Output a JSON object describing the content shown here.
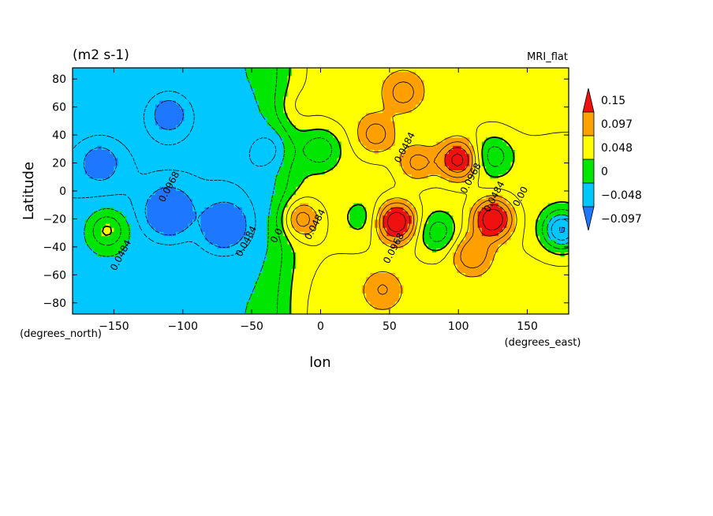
{
  "chart_data": {
    "type": "heatmap",
    "title": "(m2 s-1)",
    "subtitle": "MRI_flat",
    "xlabel": "lon",
    "ylabel": "Latitude",
    "x_units": "(degrees_east)",
    "y_units": "(degrees_north)",
    "xlim": [
      -180,
      180
    ],
    "ylim": [
      -88,
      88
    ],
    "x_ticks": [
      -150,
      -100,
      -50,
      0,
      50,
      100,
      150
    ],
    "y_ticks": [
      -80,
      -60,
      -40,
      -20,
      0,
      20,
      40,
      60,
      80
    ],
    "colorbar": {
      "tick_labels": [
        "0.15",
        "0.097",
        "0.048",
        "0",
        "-0.048",
        "-0.097"
      ],
      "tick_values": [
        0.15,
        0.097,
        0.048,
        0,
        -0.048,
        -0.097
      ],
      "colors": [
        "#1e78ff",
        "#00c8ff",
        "#00e600",
        "#ffff00",
        "#ffa000",
        "#f01010"
      ],
      "bounds": [
        -0.097,
        -0.048,
        0,
        0.048,
        0.097,
        0.15
      ]
    },
    "contour_labels": [
      {
        "text": "0.0968",
        "lon": -108,
        "lat": 2
      },
      {
        "text": "0.0484",
        "lon": -143,
        "lat": -47
      },
      {
        "text": "0.0484",
        "lon": -52,
        "lat": -37
      },
      {
        "text": "0.0",
        "lon": -30,
        "lat": -33
      },
      {
        "text": "0.0484",
        "lon": -2,
        "lat": -25
      },
      {
        "text": "0.0968",
        "lon": 55,
        "lat": -42
      },
      {
        "text": "0.0484",
        "lon": 63,
        "lat": 30
      },
      {
        "text": "0.0968",
        "lon": 111,
        "lat": 8
      },
      {
        "text": "0.0484",
        "lon": 128,
        "lat": -5
      },
      {
        "text": "0.00",
        "lon": 147,
        "lat": -5
      }
    ],
    "field_features": [
      {
        "lon": -155,
        "lat": -28,
        "value": 0.08
      },
      {
        "lon": -110,
        "lat": -15,
        "value": -0.12
      },
      {
        "lon": -70,
        "lat": -25,
        "value": -0.11
      },
      {
        "lon": 175,
        "lat": -28,
        "value": -0.11
      },
      {
        "lon": 55,
        "lat": -22,
        "value": 0.15
      },
      {
        "lon": 125,
        "lat": -20,
        "value": 0.15
      },
      {
        "lon": 100,
        "lat": 22,
        "value": 0.13
      },
      {
        "lon": 70,
        "lat": 20,
        "value": 0.07
      },
      {
        "lon": -15,
        "lat": -20,
        "value": 0.09
      },
      {
        "lon": 40,
        "lat": 40,
        "value": 0.07
      },
      {
        "lon": 85,
        "lat": -30,
        "value": -0.05
      },
      {
        "lon": 0,
        "lat": 30,
        "value": -0.05
      },
      {
        "lon": 125,
        "lat": 25,
        "value": -0.05
      },
      {
        "lon": 30,
        "lat": -20,
        "value": -0.02
      },
      {
        "lon": -110,
        "lat": 55,
        "value": -0.06
      },
      {
        "lon": -35,
        "lat": 30,
        "value": -0.02
      },
      {
        "lon": 110,
        "lat": -45,
        "value": 0.08
      },
      {
        "lon": 150,
        "lat": 60,
        "value": 0.02
      },
      {
        "lon": 20,
        "lat": 65,
        "value": 0.02
      },
      {
        "lon": 60,
        "lat": 70,
        "value": 0.06
      },
      {
        "lon": 45,
        "lat": -70,
        "value": 0.05
      },
      {
        "lon": -160,
        "lat": 20,
        "value": -0.05
      },
      {
        "lon": -20,
        "lat": 60,
        "value": 0.03
      }
    ]
  }
}
